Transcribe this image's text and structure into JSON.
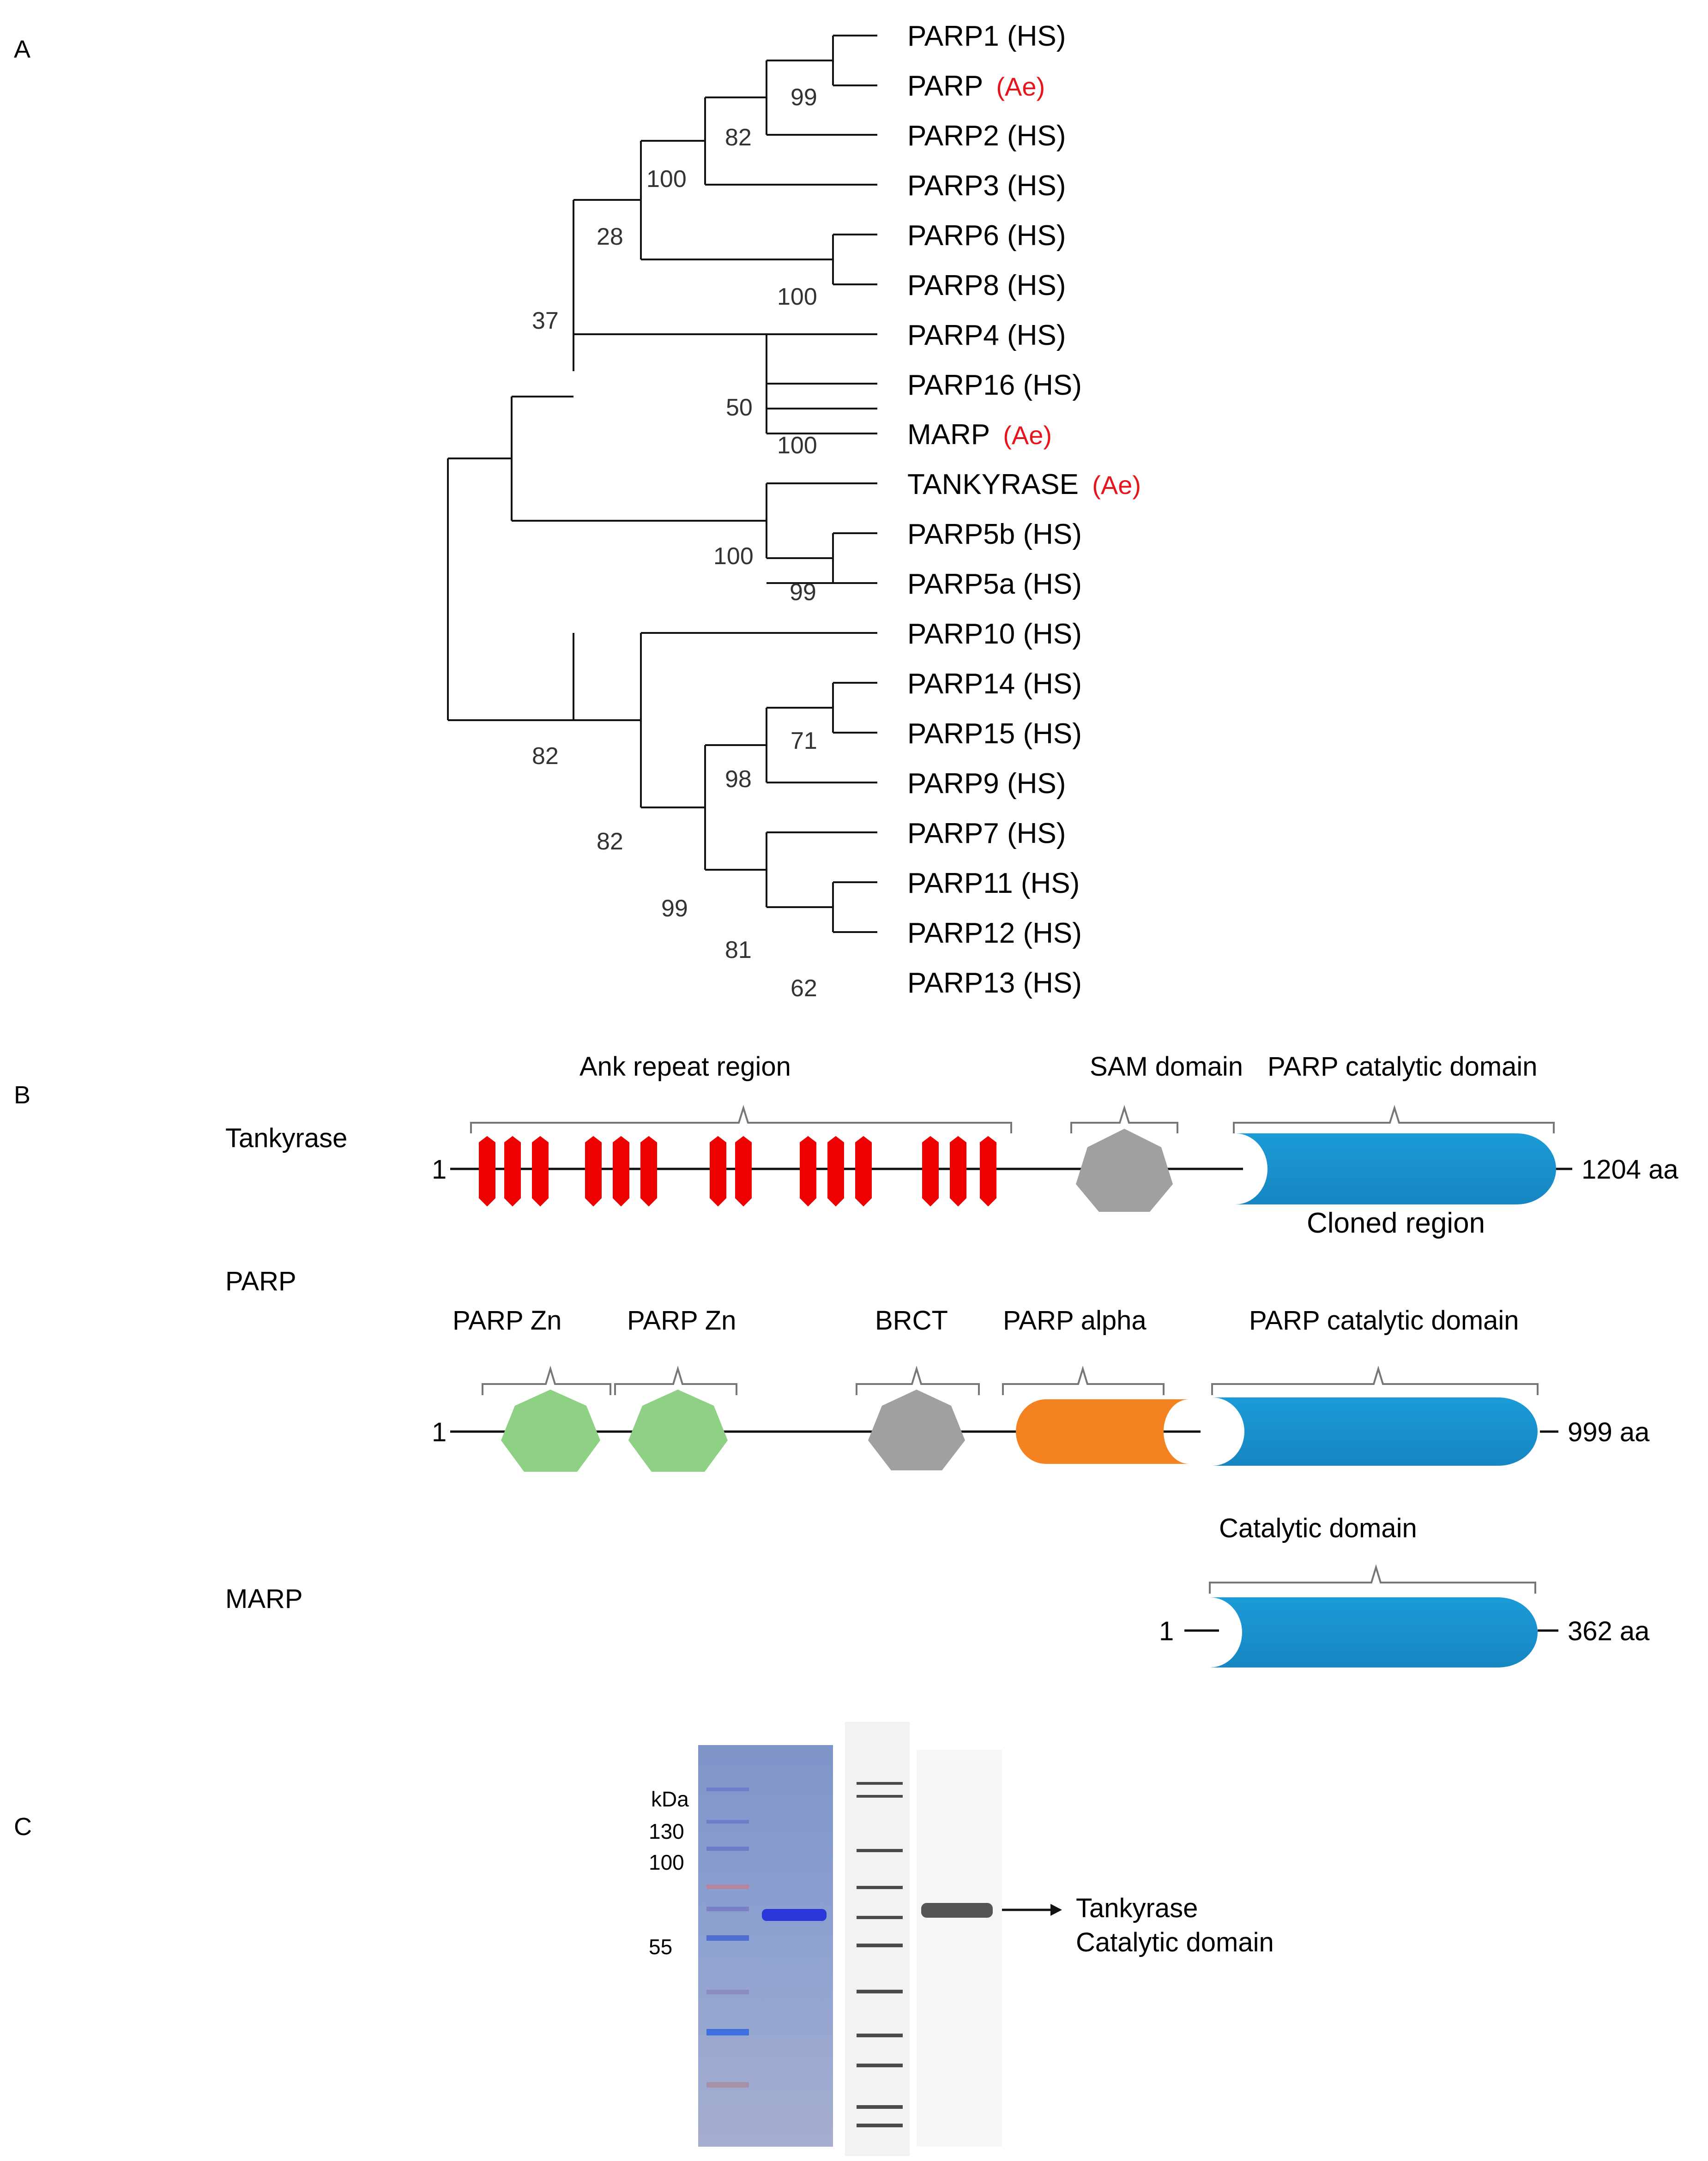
{
  "panels": {
    "a": "A",
    "b": "B",
    "c": "C"
  },
  "colors": {
    "ae_red": "#e8141c",
    "ank_red": "#ee0000",
    "catalytic_blue": "#1b9bd7",
    "sam_gray": "#a0a0a0",
    "zn_green": "#8ed084",
    "alpha_orange": "#f58220",
    "bootstrap_text": "#333333"
  },
  "tree": {
    "taxa": [
      {
        "name": "PARP1",
        "tag": "(HS)",
        "ae": false
      },
      {
        "name": "PARP",
        "tag": "(Ae)",
        "ae": true
      },
      {
        "name": "PARP2",
        "tag": "(HS)",
        "ae": false
      },
      {
        "name": "PARP3",
        "tag": "(HS)",
        "ae": false
      },
      {
        "name": "PARP6",
        "tag": "(HS)",
        "ae": false
      },
      {
        "name": "PARP8",
        "tag": "(HS)",
        "ae": false
      },
      {
        "name": "PARP4",
        "tag": "(HS)",
        "ae": false
      },
      {
        "name": "PARP16",
        "tag": "(HS)",
        "ae": false
      },
      {
        "name": "MARP",
        "tag": "(Ae)",
        "ae": true
      },
      {
        "name": "TANKYRASE",
        "tag": "(Ae)",
        "ae": true
      },
      {
        "name": "PARP5b",
        "tag": "(HS)",
        "ae": false
      },
      {
        "name": "PARP5a",
        "tag": "(HS)",
        "ae": false
      },
      {
        "name": "PARP10",
        "tag": "(HS)",
        "ae": false
      },
      {
        "name": "PARP14",
        "tag": "(HS)",
        "ae": false
      },
      {
        "name": "PARP15",
        "tag": "(HS)",
        "ae": false
      },
      {
        "name": "PARP9",
        "tag": "(HS)",
        "ae": false
      },
      {
        "name": "PARP7",
        "tag": "(HS)",
        "ae": false
      },
      {
        "name": "PARP11",
        "tag": "(HS)",
        "ae": false
      },
      {
        "name": "PARP12",
        "tag": "(HS)",
        "ae": false
      },
      {
        "name": "PARP13",
        "tag": "(HS)",
        "ae": false
      }
    ],
    "bootstraps": [
      "99",
      "82",
      "100",
      "28",
      "100",
      "37",
      "50",
      "100",
      "100",
      "99",
      "82",
      "71",
      "98",
      "82",
      "99",
      "81",
      "62"
    ]
  },
  "domains": {
    "tankyrase": {
      "name": "Tankyrase",
      "start": "1",
      "end": "1204 aa",
      "ank_label": "Ank repeat region",
      "sam_label": "SAM domain",
      "cat_label": "PARP catalytic domain",
      "cloned_label": "Cloned region"
    },
    "parp": {
      "name": "PARP",
      "start": "1",
      "end": "999 aa",
      "zn1_label": "PARP Zn",
      "zn2_label": "PARP Zn",
      "brct_label": "BRCT",
      "alpha_label": "PARP alpha",
      "cat_label": "PARP catalytic domain"
    },
    "marp": {
      "name": "MARP",
      "start": "1",
      "end": "362 aa",
      "cat_label": "Catalytic domain"
    }
  },
  "gel": {
    "kda_label": "kDa",
    "markers": [
      "130",
      "100",
      "55"
    ],
    "annotation_line1": "Tankyrase",
    "annotation_line2": "Catalytic domain"
  }
}
